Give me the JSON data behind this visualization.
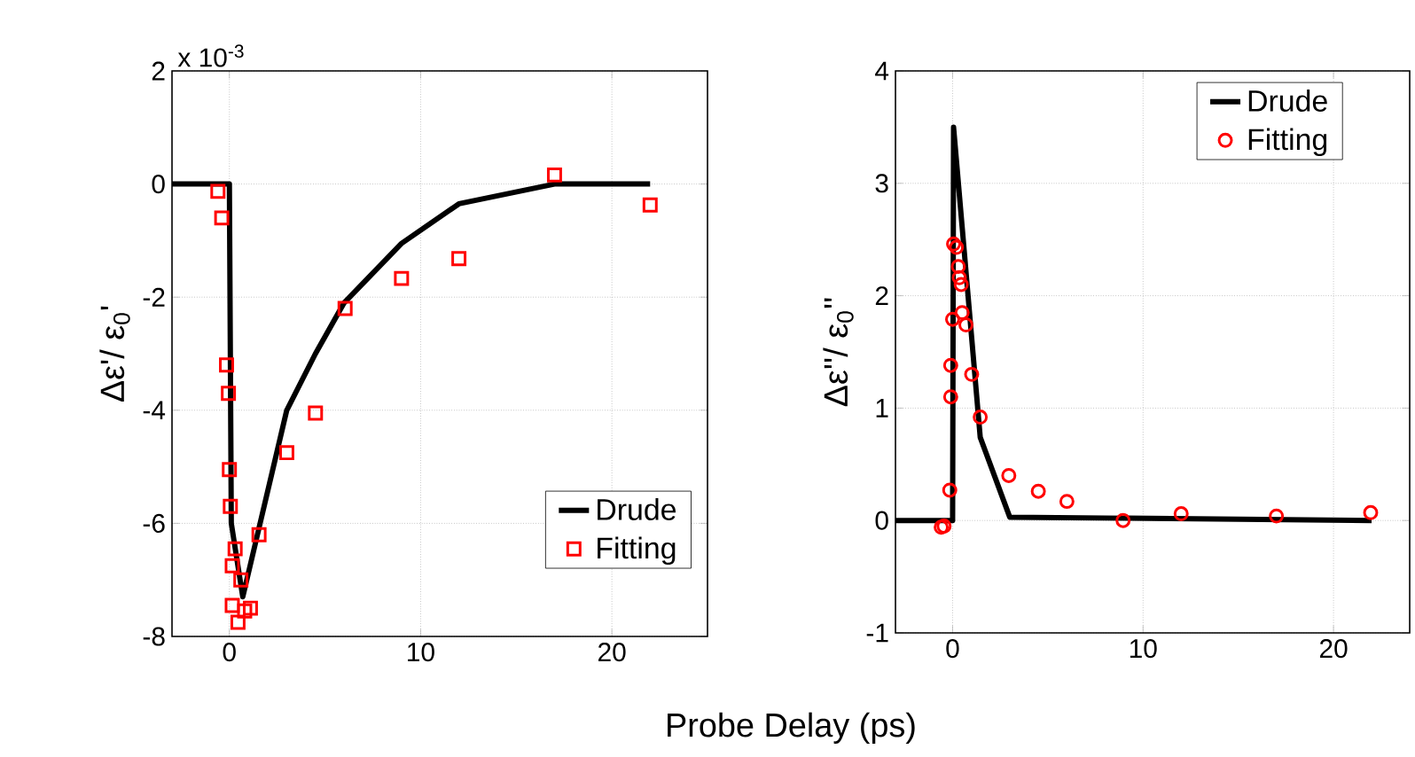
{
  "chart_data": [
    {
      "type": "line",
      "ylabel": "Δε'/ ε$_{0}$'",
      "xlabel": "Probe Delay (ps)",
      "xlim": [
        -3,
        25
      ],
      "xticks": [
        0,
        10,
        20
      ],
      "ylim": [
        -8,
        2
      ],
      "yticks": [
        -8,
        -6,
        -4,
        -2,
        0,
        2
      ],
      "annotations": [
        "x 10$^{-3}$"
      ],
      "grid": true,
      "legend": "bottom right",
      "series": [
        {
          "name": "Drude",
          "type": "line",
          "color": "#000000",
          "marker": "none",
          "x": [
            -3,
            0,
            0.1,
            0.7,
            3,
            4.5,
            6,
            9,
            12,
            17,
            22
          ],
          "values": [
            0,
            0,
            -6,
            -7.3,
            -4,
            -3,
            -2.1,
            -1.05,
            -0.35,
            0,
            0
          ]
        },
        {
          "name": "Fitting",
          "type": "scatter",
          "color": "#ff0000",
          "marker": "square",
          "x": [
            -0.6,
            -0.4,
            -0.15,
            -0.05,
            0,
            0.05,
            0.3,
            0.15,
            0.6,
            0.15,
            0.45,
            0.8,
            1.1,
            1.55,
            3.0,
            4.5,
            6.05,
            9.0,
            12.0,
            17.0,
            22.0
          ],
          "values": [
            -0.13,
            -0.6,
            -3.2,
            -3.7,
            -5.05,
            -5.7,
            -6.45,
            -6.75,
            -7.0,
            -7.45,
            -7.75,
            -7.55,
            -7.5,
            -6.2,
            -4.75,
            -4.05,
            -2.2,
            -1.67,
            -1.32,
            0.16,
            -0.37
          ]
        }
      ]
    },
    {
      "type": "line",
      "ylabel": "Δε''/ ε$_{0}$''",
      "xlim": [
        -3,
        24
      ],
      "xticks": [
        0,
        10,
        20
      ],
      "ylim": [
        -1,
        4
      ],
      "yticks": [
        -1,
        0,
        1,
        2,
        3,
        4
      ],
      "grid": true,
      "legend": "top right",
      "series": [
        {
          "name": "Drude",
          "type": "line",
          "color": "#000000",
          "marker": "none",
          "x": [
            -3,
            0,
            0.05,
            1.45,
            3,
            22
          ],
          "values": [
            0,
            0,
            3.5,
            0.74,
            0.03,
            0
          ]
        },
        {
          "name": "Fitting",
          "type": "scatter",
          "color": "#ff0000",
          "marker": "circle",
          "x": [
            -0.6,
            -0.45,
            -0.15,
            -0.1,
            -0.1,
            0,
            0.05,
            0.2,
            0.3,
            0.35,
            0.45,
            0.5,
            0.7,
            1.0,
            1.45,
            2.95,
            4.5,
            6.0,
            8.95,
            12.0,
            17.0,
            21.95
          ],
          "values": [
            -0.06,
            -0.05,
            0.27,
            1.1,
            1.38,
            1.79,
            2.46,
            2.43,
            2.26,
            2.16,
            2.1,
            1.85,
            1.74,
            1.3,
            0.92,
            0.4,
            0.26,
            0.17,
            0.0,
            0.06,
            0.04,
            0.07
          ]
        }
      ]
    }
  ]
}
